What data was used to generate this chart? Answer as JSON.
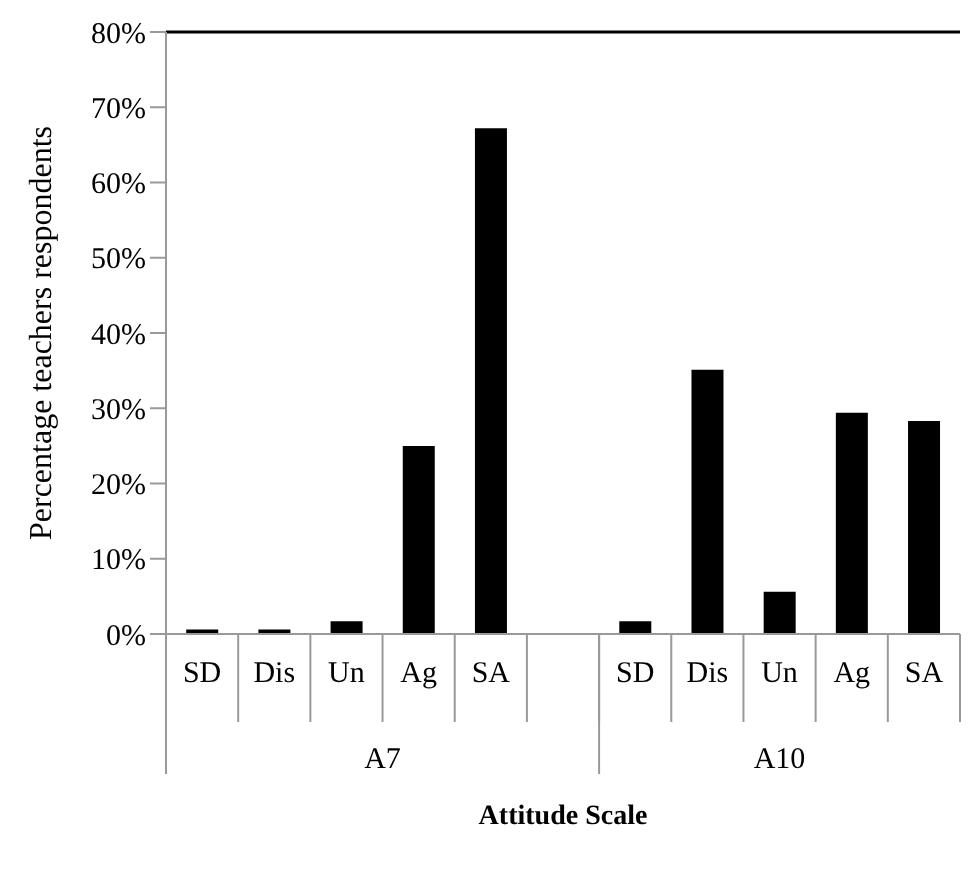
{
  "chart_data": {
    "type": "bar",
    "xlabel": "Attitude Scale",
    "ylabel": "Percentage teachers respondents",
    "categories": [
      "SD",
      "Dis",
      "Un",
      "Ag",
      "SA",
      null,
      "SD",
      "Dis",
      "Un",
      "Ag",
      "SA"
    ],
    "values": [
      0.6,
      0.6,
      1.7,
      25.0,
      67.2,
      null,
      1.7,
      35.1,
      5.6,
      29.4,
      28.3
    ],
    "color": "#000000",
    "annotations": [
      "A7",
      "A10"
    ],
    "ylim": [
      0,
      80
    ],
    "yticks": [
      {
        "value": 0,
        "label": "0%"
      },
      {
        "value": 10,
        "label": "10%"
      },
      {
        "value": 20,
        "label": "20%"
      },
      {
        "value": 30,
        "label": "30%"
      },
      {
        "value": 40,
        "label": "40%"
      },
      {
        "value": 50,
        "label": "50%"
      },
      {
        "value": 60,
        "label": "60%"
      },
      {
        "value": 70,
        "label": "70%"
      },
      {
        "value": 80,
        "label": "80%"
      }
    ],
    "grid": false,
    "legend": false
  }
}
